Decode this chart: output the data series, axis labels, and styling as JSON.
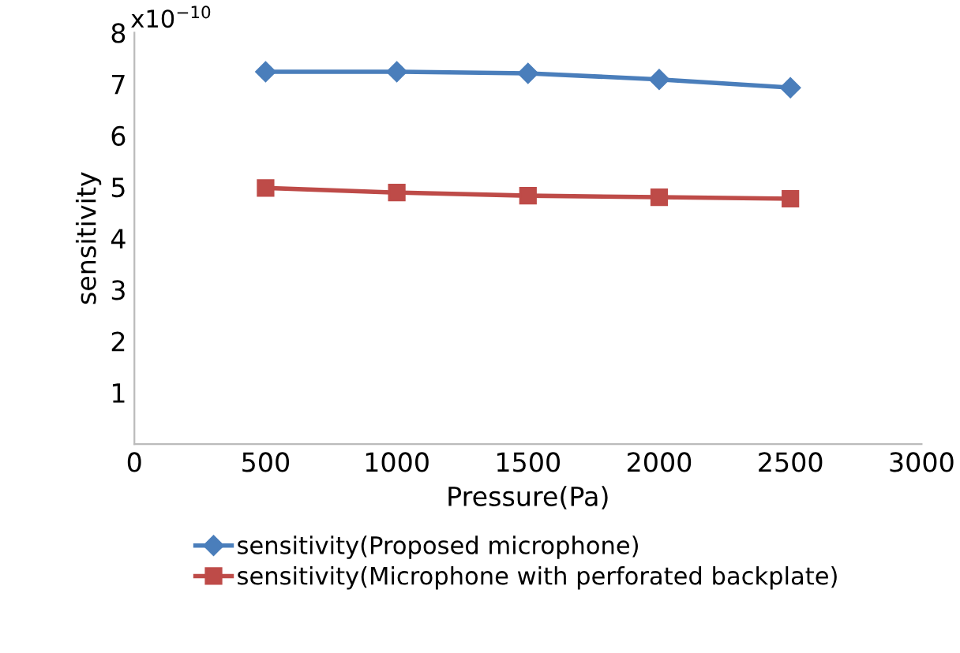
{
  "chart_data": {
    "type": "line",
    "xlabel": "Pressure(Pa)",
    "ylabel": "sensitivity",
    "x": [
      500,
      1000,
      1500,
      2000,
      2500
    ],
    "series": [
      {
        "name": "sensitivity(Proposed microphone)",
        "color": "#4a7ebb",
        "marker": "diamond",
        "values": [
          7.24,
          7.24,
          7.21,
          7.09,
          6.93
        ]
      },
      {
        "name": "sensitivity(Microphone with perforated backplate)",
        "color": "#be4b48",
        "marker": "square",
        "values": [
          4.98,
          4.89,
          4.83,
          4.8,
          4.77
        ]
      }
    ],
    "xlim": [
      0,
      3000
    ],
    "xticks": [
      0,
      500,
      1000,
      1500,
      2000,
      2500,
      3000
    ],
    "ylim": [
      0,
      8
    ],
    "yticks": [
      1,
      2,
      3,
      4,
      5,
      6,
      7,
      8
    ],
    "annotations": [
      "x10$^{−10}$"
    ],
    "grid": false,
    "legend": "bottom",
    "line_style": "solid"
  }
}
